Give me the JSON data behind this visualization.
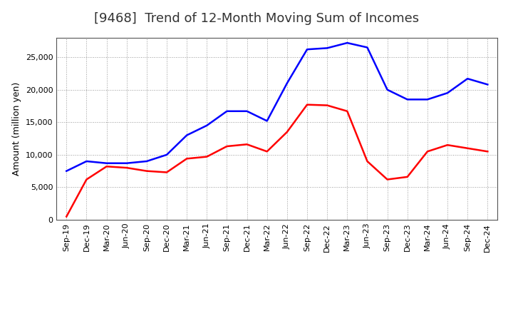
{
  "title": "[9468]  Trend of 12-Month Moving Sum of Incomes",
  "ylabel": "Amount (million yen)",
  "x_labels": [
    "Sep-19",
    "Dec-19",
    "Mar-20",
    "Jun-20",
    "Sep-20",
    "Dec-20",
    "Mar-21",
    "Jun-21",
    "Sep-21",
    "Dec-21",
    "Mar-22",
    "Jun-22",
    "Sep-22",
    "Dec-22",
    "Mar-23",
    "Jun-23",
    "Sep-23",
    "Dec-23",
    "Mar-24",
    "Jun-24",
    "Sep-24",
    "Dec-24"
  ],
  "ordinary_income": [
    7500,
    9000,
    8700,
    8700,
    9000,
    10000,
    13000,
    14500,
    16700,
    16700,
    15200,
    21000,
    26200,
    26400,
    27200,
    26500,
    20000,
    18500,
    18500,
    19500,
    21700,
    20800
  ],
  "net_income": [
    500,
    6200,
    8200,
    8000,
    7500,
    7300,
    9400,
    9700,
    11300,
    11600,
    10500,
    13500,
    17700,
    17600,
    16700,
    9000,
    6200,
    6600,
    10500,
    11500,
    11000,
    10500
  ],
  "ordinary_color": "#0000FF",
  "net_color": "#FF0000",
  "ylim": [
    0,
    28000
  ],
  "yticks": [
    0,
    5000,
    10000,
    15000,
    20000,
    25000
  ],
  "background_color": "#FFFFFF",
  "grid_color": "#999999",
  "title_fontsize": 13,
  "axis_label_fontsize": 9,
  "tick_fontsize": 8,
  "legend_fontsize": 9,
  "line_width": 1.8
}
